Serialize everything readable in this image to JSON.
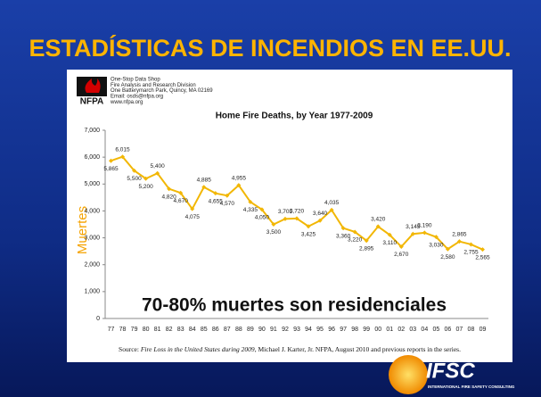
{
  "slide_title": "ESTADÍSTICAS DE INCENDIOS EN EE.UU.",
  "nfpa": {
    "logo": "NFPA",
    "lines": [
      "One-Stop Data Shop",
      "Fire Analysis and Research Division",
      "One Batterymarch Park, Quincy, MA 02169",
      "Email: osds@nfpa.org",
      "www.nfpa.org"
    ]
  },
  "overlay": "70-80% muertes son residenciales",
  "source": {
    "prefix": "Source: ",
    "italic": "Fire Loss in the United States during 2009",
    "suffix": ", Michael J. Karter, Jr. NFPA, August 2010 and previous reports in the series."
  },
  "footer_logo": {
    "name": "IFSC",
    "tagline": "INTERNATIONAL FIRE SAFETY CONSULTING"
  },
  "chart_data": {
    "type": "line",
    "title": "Home Fire Deaths, by Year 1977-2009",
    "y_label": "Muertes",
    "categories": [
      "77",
      "78",
      "79",
      "80",
      "81",
      "82",
      "83",
      "84",
      "85",
      "86",
      "87",
      "88",
      "89",
      "90",
      "91",
      "92",
      "93",
      "94",
      "95",
      "96",
      "97",
      "98",
      "99",
      "00",
      "01",
      "02",
      "03",
      "04",
      "05",
      "06",
      "07",
      "08",
      "09"
    ],
    "series": [
      {
        "name": "Home Fire Deaths",
        "color": "#f2b705",
        "values": [
          5865,
          6015,
          5500,
          5200,
          5400,
          4820,
          4670,
          4075,
          4885,
          4655,
          4570,
          4955,
          4335,
          4050,
          3500,
          3705,
          3720,
          3425,
          3640,
          4035,
          3360,
          3220,
          2895,
          3420,
          3110,
          2670,
          3145,
          3190,
          3030,
          2580,
          2865,
          2755,
          2565
        ],
        "value_labels": [
          "5,865",
          "6,015",
          "5,500",
          "5,200",
          "5,400",
          "4,820",
          "4,670",
          "4,075",
          "4,885",
          "4,655",
          "4,570",
          "4,955",
          "4,335",
          "4,050",
          "3,500",
          "3,705",
          "3,720",
          "3,425",
          "3,640",
          "4,035",
          "3,360",
          "3,220",
          "2,895",
          "3,420",
          "3,110",
          "2,670",
          "3,145",
          "3,190",
          "3,030",
          "2,580",
          "2,865",
          "2,755",
          "2,565"
        ]
      }
    ],
    "ylim": [
      0,
      7000
    ],
    "yticks": [
      0,
      {
        "value": 1000,
        "label": "1,000"
      },
      {
        "value": 2000,
        "label": "2,000"
      },
      {
        "value": 3000,
        "label": "3,000"
      },
      {
        "value": 4000,
        "label": "4,000"
      },
      {
        "value": 5000,
        "label": "5,000"
      },
      {
        "value": 6000,
        "label": "6,000"
      },
      {
        "value": 7000,
        "label": "7,000"
      }
    ],
    "grid": false
  }
}
